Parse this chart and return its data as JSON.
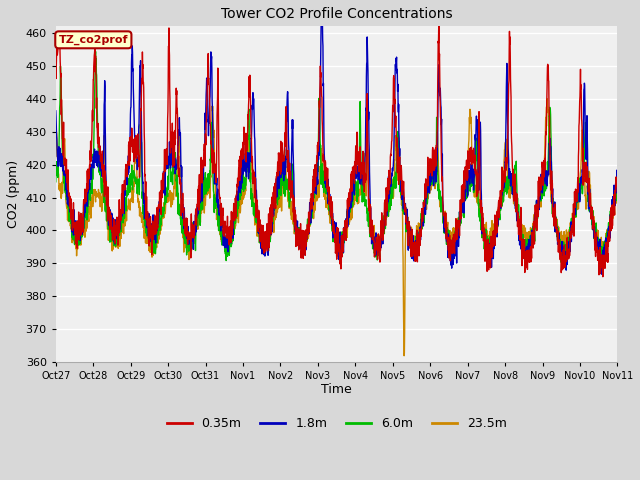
{
  "title": "Tower CO2 Profile Concentrations",
  "xlabel": "Time",
  "ylabel": "CO2 (ppm)",
  "ylim": [
    360,
    462
  ],
  "yticks": [
    360,
    370,
    380,
    390,
    400,
    410,
    420,
    430,
    440,
    450,
    460
  ],
  "series_labels": [
    "0.35m",
    "1.8m",
    "6.0m",
    "23.5m"
  ],
  "series_colors": [
    "#cc0000",
    "#0000bb",
    "#00bb00",
    "#cc8800"
  ],
  "line_width": 1.0,
  "bg_color": "#d8d8d8",
  "plot_bg_color": "#f0f0f0",
  "label_box_text": "TZ_co2prof",
  "label_box_bg": "#ffffcc",
  "label_box_edge": "#aa0000",
  "xtick_labels": [
    "Oct 27",
    "Oct 28",
    "Oct 29",
    "Oct 30",
    "Oct 31",
    "Nov 1",
    "Nov 2",
    "Nov 3",
    "Nov 4",
    "Nov 5",
    "Nov 6",
    "Nov 7",
    "Nov 8",
    "Nov 9",
    "Nov 10",
    "Nov 11"
  ],
  "n_points_per_day": 144
}
